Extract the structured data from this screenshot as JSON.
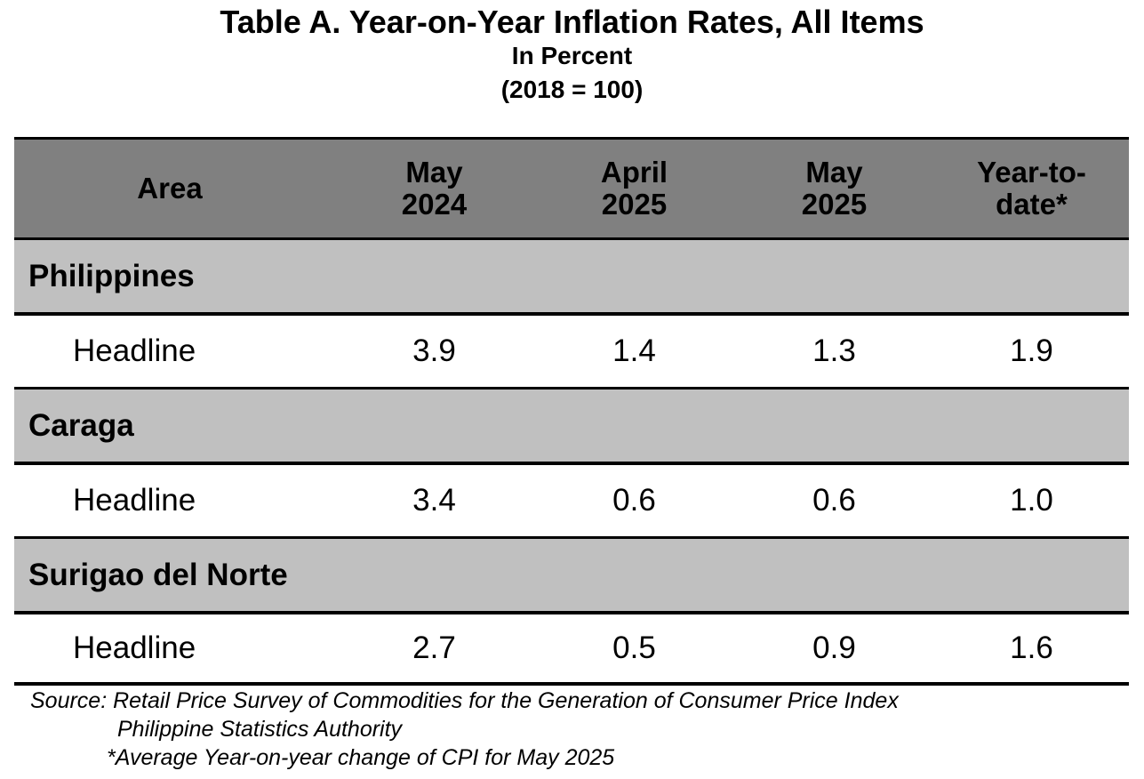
{
  "title": "Table A. Year-on-Year Inflation Rates, All Items",
  "subtitle1": "In Percent",
  "subtitle2": "(2018 = 100)",
  "table": {
    "headers": [
      {
        "line1": "Area",
        "line2": ""
      },
      {
        "line1": "May",
        "line2": "2024"
      },
      {
        "line1": "April",
        "line2": "2025"
      },
      {
        "line1": "May",
        "line2": "2025"
      },
      {
        "line1": "Year-to-",
        "line2": "date*"
      }
    ],
    "groups": [
      {
        "area": "Philippines",
        "row": {
          "label": "Headline",
          "values": [
            "3.9",
            "1.4",
            "1.3",
            "1.9"
          ]
        }
      },
      {
        "area": "Caraga",
        "row": {
          "label": "Headline",
          "values": [
            "3.4",
            "0.6",
            "0.6",
            "1.0"
          ]
        }
      },
      {
        "area": "Surigao del Norte",
        "row": {
          "label": "Headline",
          "values": [
            "2.7",
            "0.5",
            "0.9",
            "1.6"
          ]
        }
      }
    ]
  },
  "notes": {
    "source": "Source: Retail Price Survey of Commodities for the Generation of Consumer Price Index",
    "agency": "Philippine Statistics Authority",
    "footnote": "*Average Year-on-year change of CPI for May 2025"
  }
}
